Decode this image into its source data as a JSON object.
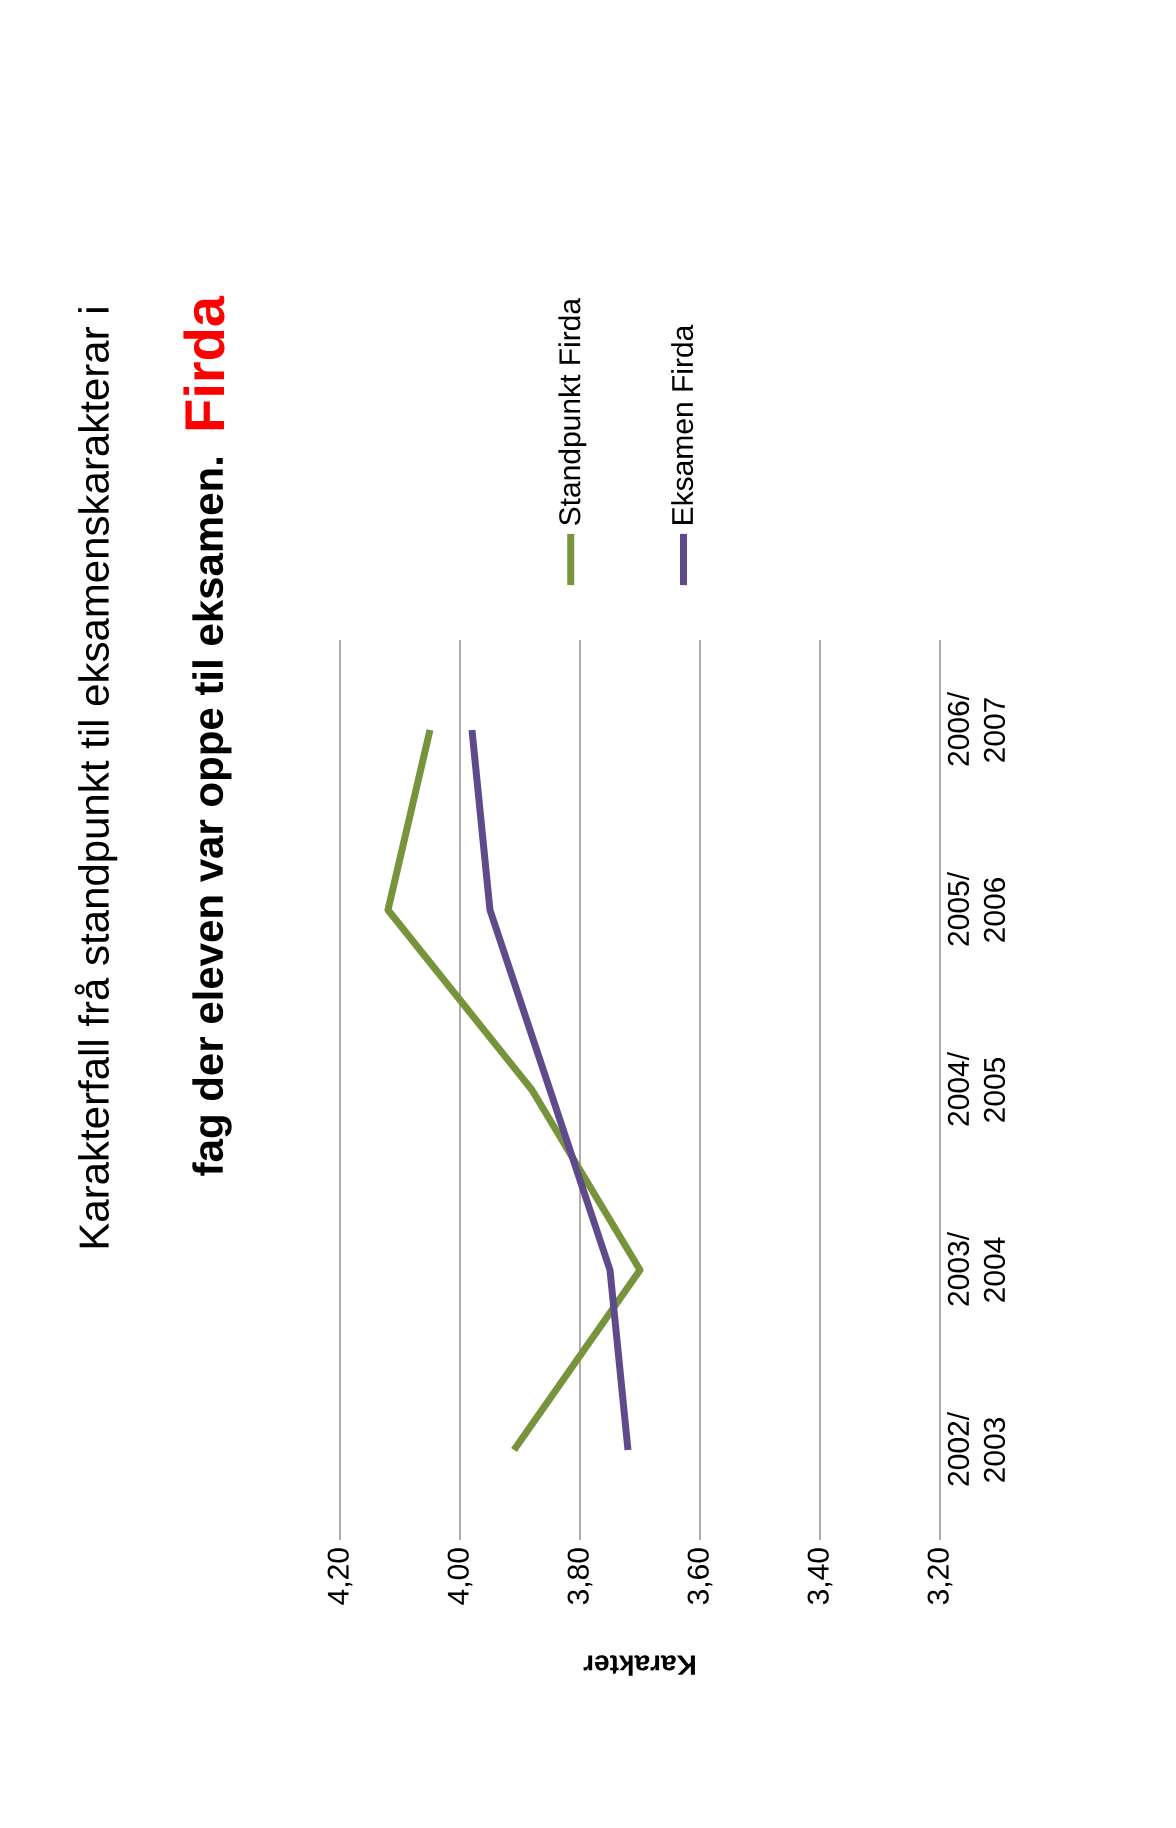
{
  "chart_data": {
    "type": "line",
    "orientation": "horizontal",
    "title": "Karakterfall frå standpunkt til eksamenskarakterar i",
    "subtitle": "fag der eleven var oppe til eksamen.",
    "annotations": [
      "Firda"
    ],
    "xlabel": "Karakter",
    "categories": [
      "2006/ 2007",
      "2005/ 2006",
      "2004/ 2005",
      "2003/ 2004",
      "2002/ 2003"
    ],
    "series": [
      {
        "name": "Standpunkt Firda",
        "color": "#77933c",
        "values": [
          4.05,
          4.12,
          3.88,
          3.7,
          3.91
        ]
      },
      {
        "name": "Eksamen Firda",
        "color": "#5f4a8b",
        "values": [
          3.98,
          3.95,
          3.85,
          3.75,
          3.72
        ]
      }
    ],
    "xlim": [
      4.2,
      3.2
    ],
    "xticks": [
      {
        "value": 4.2,
        "label": "4,20"
      },
      {
        "value": 4.0,
        "label": "4,00"
      },
      {
        "value": 3.8,
        "label": "3,80"
      },
      {
        "value": 3.6,
        "label": "3,60"
      },
      {
        "value": 3.4,
        "label": "3,40"
      },
      {
        "value": 3.2,
        "label": "3,20"
      }
    ],
    "grid": "x",
    "legend": "top right",
    "marker": "none",
    "line_style": "solid"
  }
}
